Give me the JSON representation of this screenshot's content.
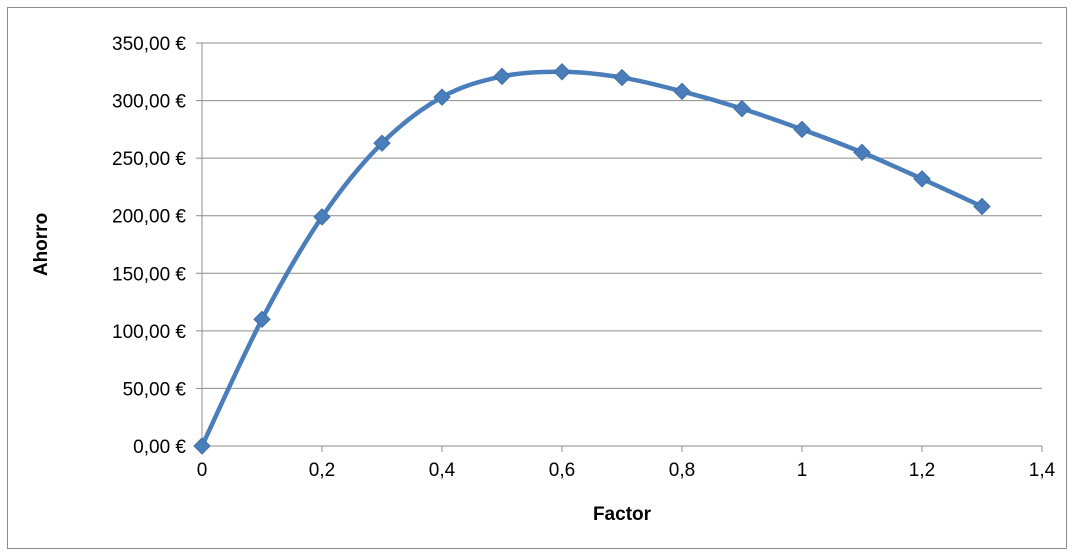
{
  "chart_data": {
    "type": "line",
    "title": "",
    "xlabel": "Factor",
    "ylabel": "Ahorro",
    "xlim": [
      0,
      1.4
    ],
    "ylim": [
      0,
      350
    ],
    "x_ticks": [
      0,
      0.2,
      0.4,
      0.6,
      0.8,
      1,
      1.2,
      1.4
    ],
    "x_tick_labels": [
      "0",
      "0,2",
      "0,4",
      "0,6",
      "0,8",
      "1",
      "1,2",
      "1,4"
    ],
    "y_ticks": [
      0,
      50,
      100,
      150,
      200,
      250,
      300,
      350
    ],
    "y_tick_labels": [
      "0,00 €",
      "50,00 €",
      "100,00 €",
      "150,00 €",
      "200,00 €",
      "250,00 €",
      "300,00 €",
      "350,00 €"
    ],
    "grid": "horizontal",
    "legend": "none",
    "smooth": true,
    "marker": "diamond",
    "series": [
      {
        "x": [
          0,
          0.1,
          0.2,
          0.3,
          0.4,
          0.5,
          0.6,
          0.7,
          0.8,
          0.9,
          1.0,
          1.1,
          1.2,
          1.3
        ],
        "values": [
          0,
          110,
          199,
          263,
          303,
          321,
          325,
          320,
          308,
          293,
          275,
          255,
          232,
          208
        ],
        "color": "#4a7ebb"
      }
    ]
  }
}
